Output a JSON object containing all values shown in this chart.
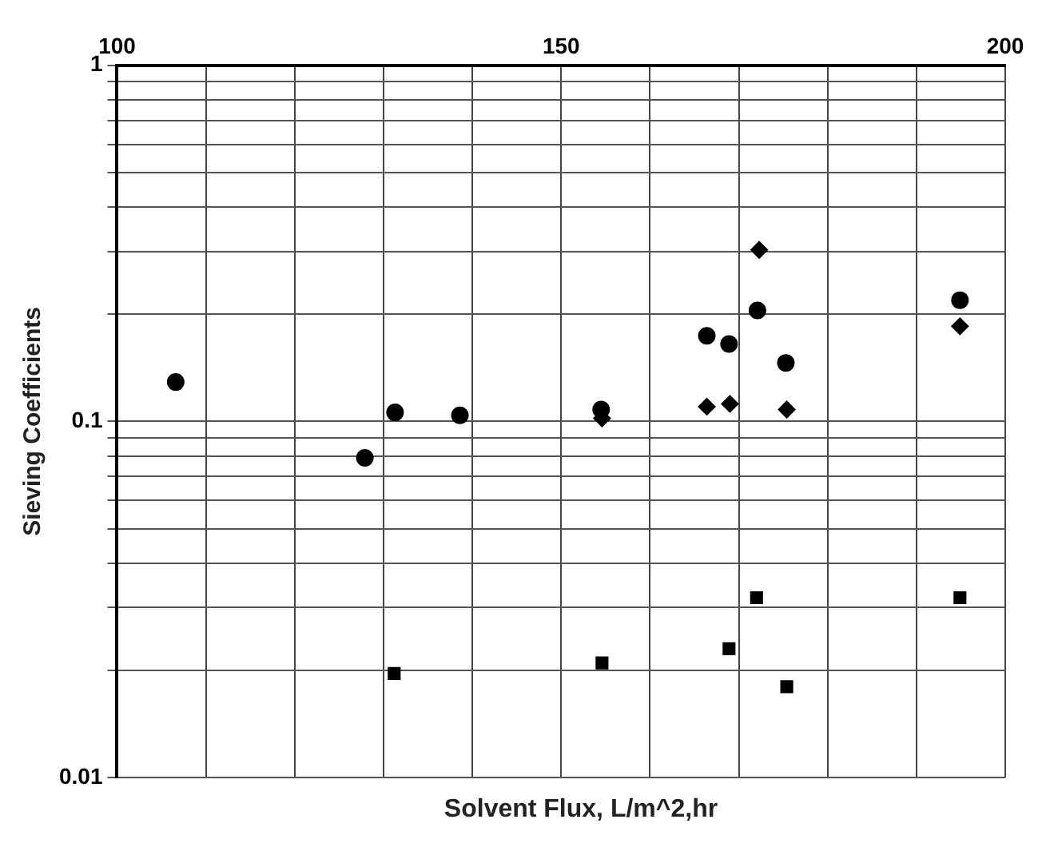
{
  "chart_data": {
    "type": "scatter",
    "xlabel": "Solvent Flux, L/m^2,hr",
    "ylabel": "Sieving Coefficients",
    "log": "y",
    "grid": true,
    "xlim": [
      100,
      200
    ],
    "xticks": [
      100,
      {
        "value": 110,
        "label": null
      },
      {
        "value": 120,
        "label": null
      },
      {
        "value": 130,
        "label": null
      },
      {
        "value": 140,
        "label": null
      },
      150,
      {
        "value": 160,
        "label": null
      },
      {
        "value": 170,
        "label": null
      },
      {
        "value": 180,
        "label": null
      },
      {
        "value": 190,
        "label": null
      },
      200
    ],
    "ylim": [
      0.01,
      1
    ],
    "yticks": [
      0.01,
      {
        "value": 0.02,
        "label": null
      },
      {
        "value": 0.03,
        "label": null
      },
      {
        "value": 0.04,
        "label": null
      },
      {
        "value": 0.05,
        "label": null
      },
      {
        "value": 0.06,
        "label": null
      },
      {
        "value": 0.07,
        "label": null
      },
      {
        "value": 0.08,
        "label": null
      },
      {
        "value": 0.09,
        "label": null
      },
      0.1,
      {
        "value": 0.2,
        "label": null
      },
      {
        "value": 0.3,
        "label": null
      },
      {
        "value": 0.4,
        "label": null
      },
      {
        "value": 0.5,
        "label": null
      },
      {
        "value": 0.6,
        "label": null
      },
      {
        "value": 0.7,
        "label": null
      },
      {
        "value": 0.8,
        "label": null
      },
      {
        "value": 0.9,
        "label": null
      },
      1
    ],
    "series": [
      {
        "color": "#000000",
        "marker": "circle",
        "x": [
          106.6,
          127.9,
          131.3,
          138.6,
          154.5,
          166.4,
          168.9,
          172.1,
          175.3,
          194.9
        ],
        "values": [
          0.129,
          0.079,
          0.106,
          0.104,
          0.108,
          0.174,
          0.165,
          0.205,
          0.146,
          0.219
        ]
      },
      {
        "color": "#000000",
        "marker": "diamond",
        "x": [
          154.6,
          166.4,
          169.0,
          172.3,
          175.4,
          194.9
        ],
        "values": [
          0.102,
          0.11,
          0.112,
          0.303,
          0.108,
          0.185
        ]
      },
      {
        "color": "#000000",
        "marker": "square",
        "x": [
          131.2,
          154.6,
          168.9,
          172.0,
          175.4,
          194.9
        ],
        "values": [
          0.0196,
          0.021,
          0.023,
          0.032,
          0.018,
          0.032
        ]
      }
    ]
  }
}
